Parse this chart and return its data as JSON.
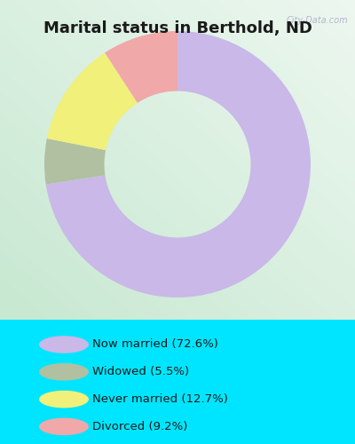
{
  "title": "Marital status in Berthold, ND",
  "categories": [
    "Now married",
    "Widowed",
    "Never married",
    "Divorced"
  ],
  "values": [
    72.6,
    5.5,
    12.7,
    9.2
  ],
  "colors": [
    "#c9b8e8",
    "#b0c0a0",
    "#f0f07a",
    "#f0a8a8"
  ],
  "legend_labels": [
    "Now married (72.6%)",
    "Widowed (5.5%)",
    "Never married (12.7%)",
    "Divorced (9.2%)"
  ],
  "bg_color_outer": "#00e5ff",
  "title_fontsize": 13,
  "donut_width": 0.45,
  "watermark": "City-Data.com"
}
